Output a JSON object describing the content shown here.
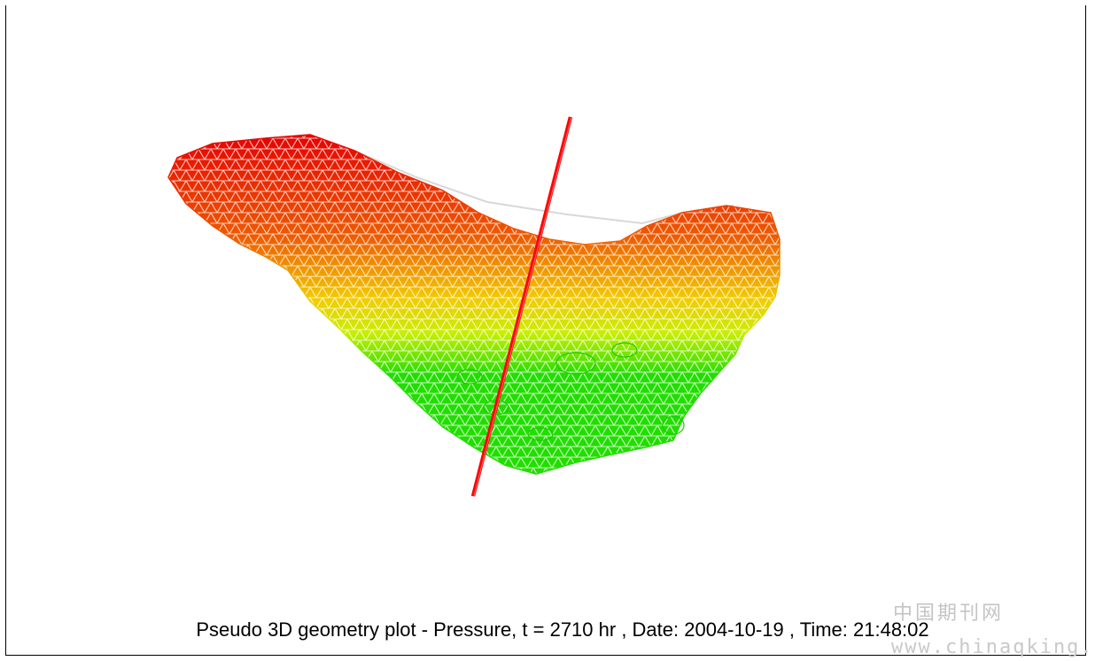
{
  "caption": "Pseudo 3D geometry plot - Pressure, t = 2710 hr , Date: 2004-10-19 , Time: 21:48:02",
  "watermark": {
    "text_cn": "中国期刊网",
    "url": "www.chinaqking.com"
  },
  "colors": {
    "high_pressure": "#e60000",
    "mid_pressure": "#f0c800",
    "low_pressure": "#22dd00",
    "well": "#ff0000",
    "outline": "#d8d8d8"
  }
}
